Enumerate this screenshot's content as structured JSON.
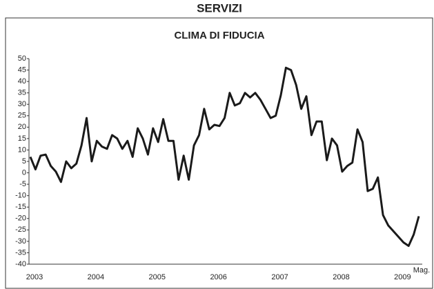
{
  "chart_data": {
    "type": "line",
    "title": "SERVIZI",
    "subtitle": "CLIMA DI FIDUCIA",
    "categories": [
      "2003",
      null,
      null,
      null,
      null,
      null,
      null,
      null,
      null,
      null,
      null,
      null,
      "2004",
      null,
      null,
      null,
      null,
      null,
      null,
      null,
      null,
      null,
      null,
      null,
      "2005",
      null,
      null,
      null,
      null,
      null,
      null,
      null,
      null,
      null,
      null,
      null,
      "2006",
      null,
      null,
      null,
      null,
      null,
      null,
      null,
      null,
      null,
      null,
      null,
      "2007",
      null,
      null,
      null,
      null,
      null,
      null,
      null,
      null,
      null,
      null,
      null,
      "2008",
      null,
      null,
      null,
      null,
      null,
      null,
      null,
      null,
      null,
      null,
      null,
      "2009",
      null,
      null,
      null,
      "Mag."
    ],
    "series": [
      {
        "name": "Clima di fiducia",
        "color": "#1a1a1a",
        "values": [
          7,
          1.5,
          7.5,
          8,
          3,
          0.5,
          -4,
          5,
          2,
          4,
          12,
          24,
          5,
          14,
          11.5,
          10.5,
          16.5,
          15,
          10.5,
          14,
          7,
          19.5,
          15,
          8,
          19.5,
          13.5,
          23.5,
          14,
          14,
          -3,
          7.5,
          -3,
          12,
          16.5,
          28,
          19,
          21,
          20.5,
          24,
          35,
          29.5,
          30.5,
          35,
          33,
          35,
          32,
          28,
          24,
          25,
          34,
          46,
          45,
          38.5,
          28,
          33.5,
          16.5,
          22.5,
          22.5,
          5.5,
          15,
          12,
          0.5,
          3,
          4.5,
          19,
          13.5,
          -8,
          -7,
          -2,
          -18.5,
          -23,
          -25.5,
          -28,
          -30.5,
          -32,
          -27,
          -19
        ]
      }
    ],
    "ylim": [
      -40,
      50
    ],
    "yticks": [
      -40,
      -35,
      -30,
      -25,
      -20,
      -15,
      -10,
      -5,
      0,
      5,
      10,
      15,
      20,
      25,
      30,
      35,
      40,
      45,
      50
    ]
  }
}
